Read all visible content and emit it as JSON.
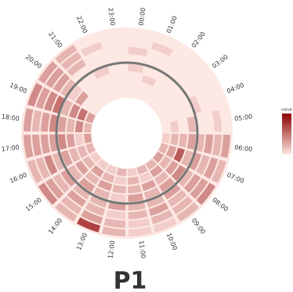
{
  "chart_data": {
    "type": "radial-heatmap",
    "title": "P1",
    "legend_title": "value",
    "categories": [
      "00:00",
      "01:00",
      "02:00",
      "03:00",
      "04:00",
      "05:00",
      "06:00",
      "07:00",
      "08:00",
      "09:00",
      "10:00",
      "11:00",
      "12:00",
      "13:00",
      "14:00",
      "15:00",
      "16:00",
      "17:00",
      "18:00",
      "19:00",
      "20:00",
      "21:00",
      "22:00",
      "23:00"
    ],
    "values": [
      [
        0,
        0,
        0,
        0,
        0,
        0,
        0.1,
        0.2,
        0.3,
        0.2,
        0.2,
        0.1,
        0.2,
        0.1,
        0.1,
        0.1,
        0.2,
        0.3,
        0.2,
        0.3,
        0,
        0,
        0,
        0
      ],
      [
        0,
        0,
        0,
        0,
        0,
        0.1,
        0.2,
        0.3,
        0.2,
        0.3,
        0.1,
        0.2,
        0.1,
        0.2,
        0.3,
        0.2,
        0.2,
        0.1,
        0.4,
        0.5,
        0,
        0,
        0,
        0
      ],
      [
        0,
        0.1,
        0,
        0,
        0,
        0,
        0.2,
        0.6,
        0.3,
        0.2,
        0.3,
        0.2,
        0.2,
        0.3,
        0.2,
        0.3,
        0.2,
        0.3,
        0.2,
        0.4,
        0.3,
        0,
        0,
        0
      ],
      [
        0.1,
        0,
        0,
        0,
        0,
        0.2,
        0.3,
        0.2,
        0.4,
        0.3,
        0.2,
        0.3,
        0.1,
        0.2,
        0.3,
        0.2,
        0.3,
        0.4,
        0.3,
        0.2,
        0.1,
        0,
        0.1,
        0
      ],
      [
        0,
        0,
        0,
        0,
        0.1,
        0,
        0.2,
        0.3,
        0.2,
        0.3,
        0.2,
        0.2,
        0.3,
        0.2,
        0.2,
        0.3,
        0.2,
        0.3,
        0.4,
        0.5,
        0.2,
        0,
        0,
        0
      ],
      [
        0.1,
        0,
        0,
        0,
        0,
        0,
        0.3,
        0.2,
        0.3,
        0.2,
        0.3,
        0.2,
        0.1,
        0.2,
        0.3,
        0.2,
        0.4,
        0.3,
        0.3,
        0.4,
        0.3,
        0.2,
        0,
        0
      ],
      [
        0,
        0.1,
        0,
        0,
        0,
        0.1,
        0.2,
        0.3,
        0.3,
        0.2,
        0.2,
        0.1,
        0.2,
        0.3,
        0.2,
        0.3,
        0.2,
        0.3,
        0.2,
        0.3,
        0.3,
        0.2,
        0.1,
        0
      ],
      [
        0,
        0,
        0,
        0,
        0,
        0,
        0.3,
        0.2,
        0.4,
        0.2,
        0.1,
        0.1,
        0.2,
        0.7,
        0.2,
        0.4,
        0.2,
        0.3,
        0.3,
        0.4,
        0.3,
        0.2,
        0,
        0
      ]
    ],
    "clim": [
      0,
      1
    ],
    "color_low": "#fde4df",
    "color_high": "#8b0000"
  }
}
